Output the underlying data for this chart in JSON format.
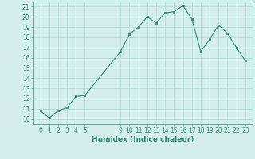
{
  "title": "",
  "xlabel": "Humidex (Indice chaleur)",
  "ylabel": "",
  "x": [
    0,
    1,
    2,
    3,
    4,
    5,
    9,
    10,
    11,
    12,
    13,
    14,
    15,
    16,
    17,
    18,
    19,
    20,
    21,
    22,
    23
  ],
  "y": [
    10.8,
    10.1,
    10.8,
    11.1,
    12.2,
    12.3,
    16.6,
    18.3,
    19.0,
    20.0,
    19.4,
    20.4,
    20.5,
    21.1,
    19.8,
    16.6,
    17.8,
    19.2,
    18.4,
    17.0,
    15.7
  ],
  "line_color": "#2e8b6e",
  "marker_color": "#2e8b6e",
  "bg_color": "#d4efeb",
  "grid_color": "#b0ddd6",
  "tick_color": "#2e8b6e",
  "label_color": "#2e8b6e",
  "ylim": [
    9.5,
    21.5
  ],
  "yticks": [
    10,
    11,
    12,
    13,
    14,
    15,
    16,
    17,
    18,
    19,
    20,
    21
  ],
  "xticks": [
    0,
    1,
    2,
    3,
    4,
    5,
    9,
    10,
    11,
    12,
    13,
    14,
    15,
    16,
    17,
    18,
    19,
    20,
    21,
    22,
    23
  ],
  "tick_fontsize": 5.5,
  "label_fontsize": 6.5
}
